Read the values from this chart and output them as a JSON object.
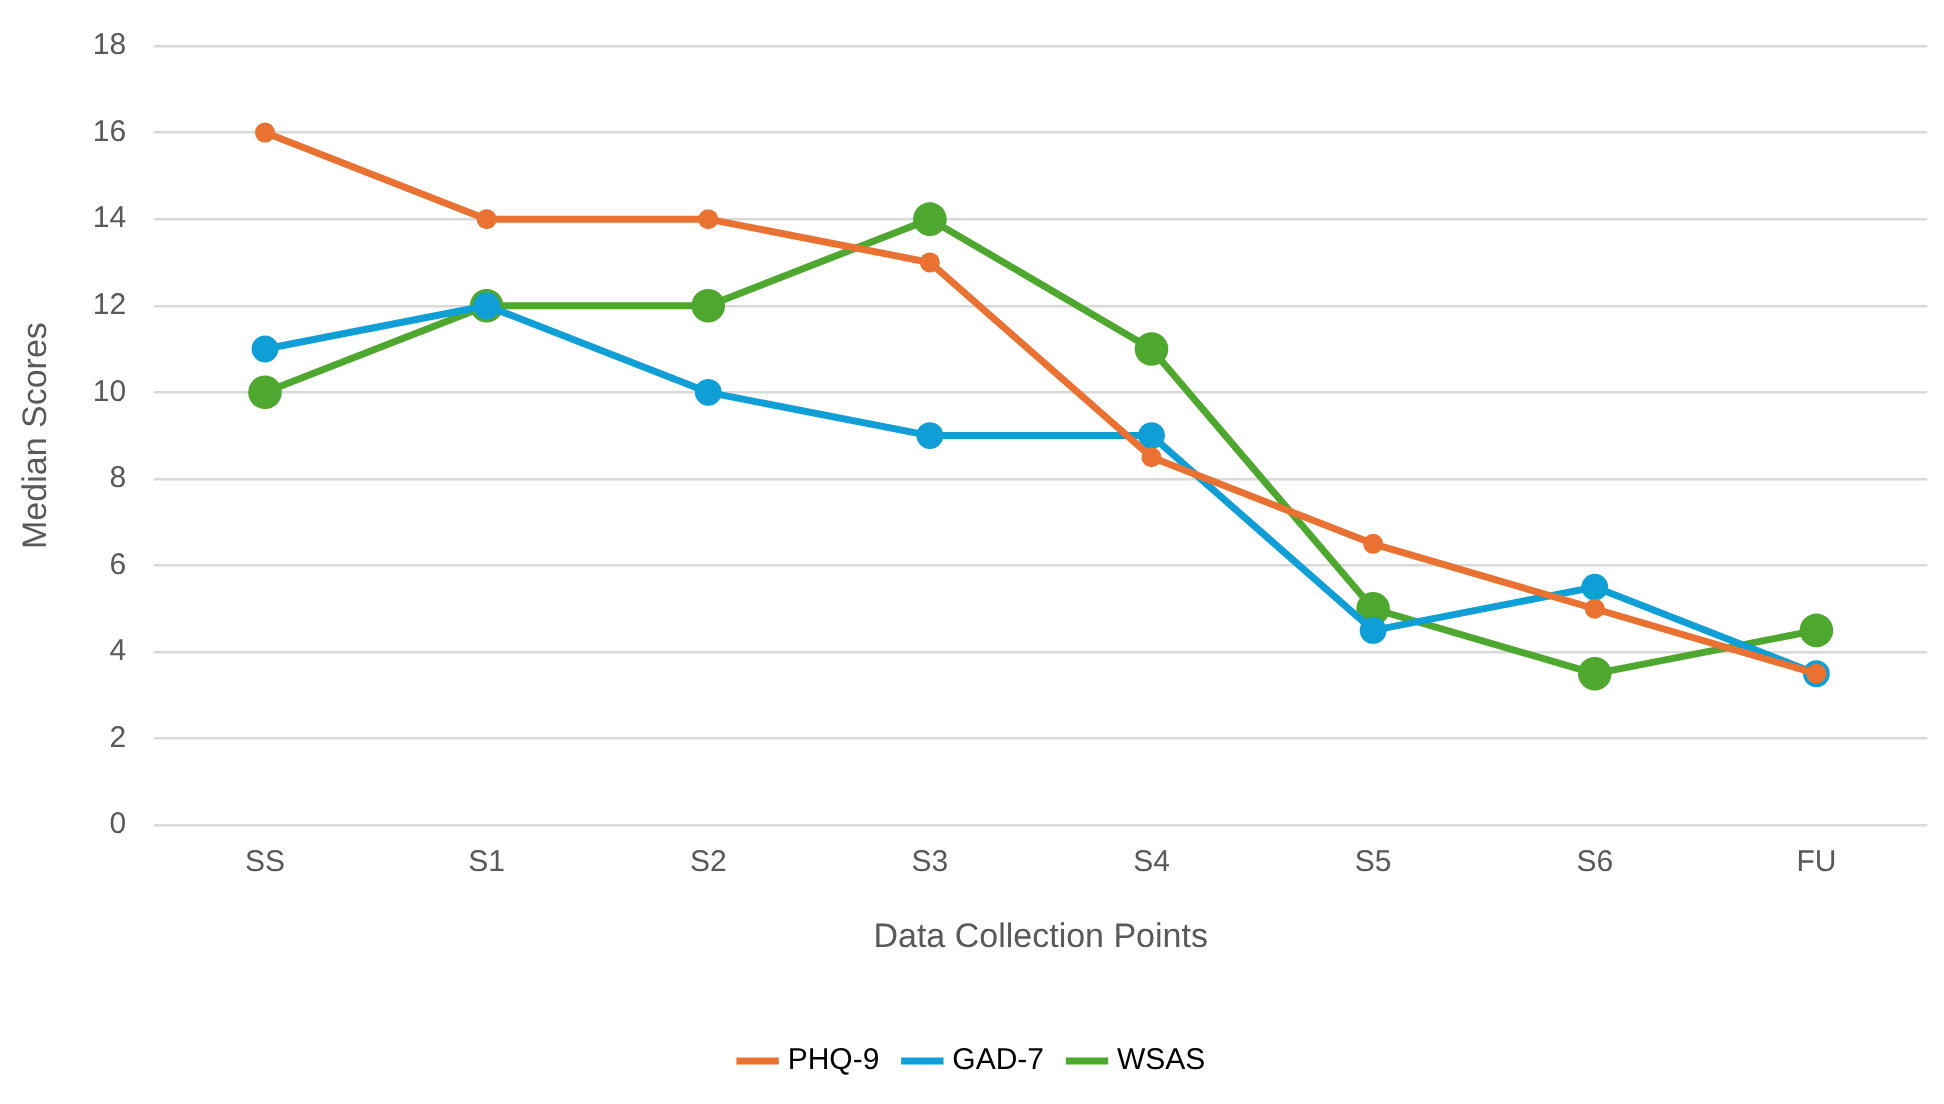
{
  "chart_data": {
    "type": "line",
    "xlabel": "Data Collection Points",
    "ylabel": "Median Scores",
    "categories": [
      "SS",
      "S1",
      "S2",
      "S3",
      "S4",
      "S5",
      "S6",
      "FU"
    ],
    "series": [
      {
        "name": "PHQ-9",
        "color": "#e97132",
        "values": [
          16,
          14,
          14,
          13,
          8.5,
          6.5,
          5,
          3.5
        ]
      },
      {
        "name": "GAD-7",
        "color": "#0f9ed5",
        "values": [
          11,
          12,
          10,
          9,
          9,
          4.5,
          5.5,
          3.5
        ]
      },
      {
        "name": "WSAS",
        "color": "#4ea72e",
        "values": [
          10,
          12,
          12,
          14,
          11,
          5,
          3.5,
          4.5
        ]
      }
    ],
    "ylim": [
      0,
      18
    ],
    "yticks": [
      0,
      2,
      4,
      6,
      8,
      10,
      12,
      14,
      16,
      18
    ],
    "grid": "y",
    "legend": "bottom",
    "marker": "circle",
    "line_style": "solid"
  }
}
